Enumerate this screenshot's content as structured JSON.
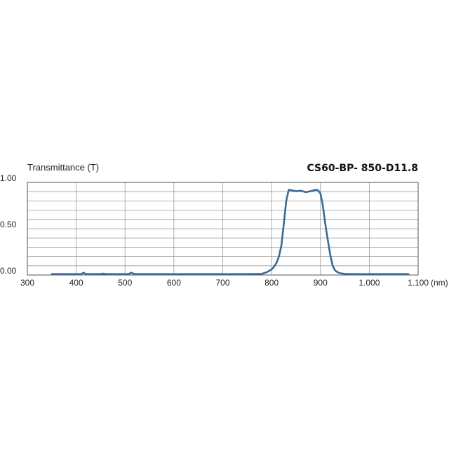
{
  "chart_data": {
    "type": "line",
    "title": "CS60-BP- 850-D11.8",
    "ylabel": "Transmittance (T)",
    "xlabel": "(nm)",
    "xlim": [
      300,
      1100
    ],
    "ylim": [
      0,
      1.0
    ],
    "x_ticks": [
      300,
      400,
      500,
      600,
      700,
      800,
      900,
      1000,
      1100
    ],
    "x_tick_labels": [
      "300",
      "400",
      "500",
      "600",
      "700",
      "800",
      "900",
      "1.000",
      "1.100"
    ],
    "y_ticks": [
      0,
      0.5,
      1.0
    ],
    "y_tick_labels": [
      "0.00",
      "0.50",
      "1.00"
    ],
    "grid": true,
    "line_color": "#3b6a94",
    "series": [
      {
        "x": [
          350,
          380,
          410,
          415,
          420,
          440,
          450,
          455,
          460,
          500,
          508,
          512,
          520,
          560,
          600,
          650,
          700,
          750,
          780,
          790,
          800,
          805,
          810,
          815,
          820,
          825,
          830,
          835,
          840,
          850,
          860,
          870,
          880,
          890,
          895,
          900,
          905,
          910,
          915,
          920,
          925,
          930,
          935,
          940,
          950,
          960,
          980,
          1000,
          1050,
          1080
        ],
        "y": [
          0.01,
          0.01,
          0.01,
          0.025,
          0.01,
          0.01,
          0.01,
          0.015,
          0.01,
          0.01,
          0.01,
          0.025,
          0.01,
          0.01,
          0.01,
          0.01,
          0.01,
          0.01,
          0.012,
          0.03,
          0.06,
          0.09,
          0.13,
          0.2,
          0.32,
          0.55,
          0.8,
          0.92,
          0.915,
          0.905,
          0.91,
          0.895,
          0.905,
          0.92,
          0.915,
          0.88,
          0.75,
          0.55,
          0.38,
          0.22,
          0.1,
          0.05,
          0.03,
          0.02,
          0.012,
          0.01,
          0.01,
          0.01,
          0.01,
          0.01
        ]
      }
    ]
  }
}
